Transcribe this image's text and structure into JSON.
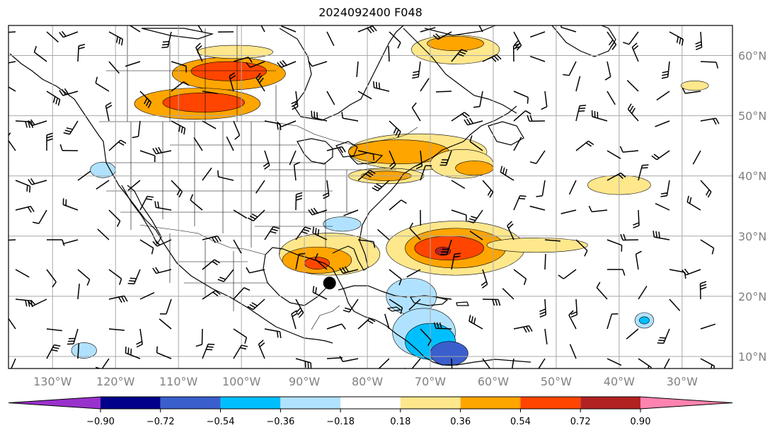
{
  "title": "2024092400 F048",
  "map": {
    "extent": {
      "lon_min": -137,
      "lon_max": -22,
      "lat_min": 8,
      "lat_max": 65
    },
    "grid": true,
    "lon_ticks": [
      {
        "value": -130,
        "label": "130°W"
      },
      {
        "value": -120,
        "label": "120°W"
      },
      {
        "value": -110,
        "label": "110°W"
      },
      {
        "value": -100,
        "label": "100°W"
      },
      {
        "value": -90,
        "label": "90°W"
      },
      {
        "value": -80,
        "label": "80°W"
      },
      {
        "value": -70,
        "label": "70°W"
      },
      {
        "value": -60,
        "label": "60°W"
      },
      {
        "value": -50,
        "label": "50°W"
      },
      {
        "value": -40,
        "label": "40°W"
      },
      {
        "value": -30,
        "label": "30°W"
      }
    ],
    "lat_ticks": [
      {
        "value": 60,
        "label": "60°N"
      },
      {
        "value": 50,
        "label": "50°N"
      },
      {
        "value": 40,
        "label": "40°N"
      },
      {
        "value": 30,
        "label": "30°N"
      },
      {
        "value": 20,
        "label": "20°N"
      },
      {
        "value": 10,
        "label": "10°N"
      }
    ],
    "storm_marker": {
      "lon": -86,
      "lat": 22.2
    }
  },
  "colorbar": {
    "boundaries": [
      "−0.90",
      "−0.72",
      "−0.54",
      "−0.36",
      "−0.18",
      "0.18",
      "0.36",
      "0.54",
      "0.72",
      "0.90"
    ],
    "colors": [
      "#9932cc",
      "#00008b",
      "#3a5fcd",
      "#00bfff",
      "#b0e2ff",
      "#ffffff",
      "#ffe78c",
      "#ffa500",
      "#ff4500",
      "#b22222",
      "#ff83b0"
    ],
    "extend": "both"
  },
  "fields": {
    "positive": [
      {
        "lon": -102,
        "lat": 57,
        "rx": 9,
        "ry": 2.7,
        "level": 2
      },
      {
        "lon": -102,
        "lat": 57.4,
        "rx": 6,
        "ry": 1.6,
        "level": 3
      },
      {
        "lon": -107,
        "lat": 52,
        "rx": 10,
        "ry": 2.6,
        "level": 2
      },
      {
        "lon": -106,
        "lat": 52.2,
        "rx": 6.5,
        "ry": 1.6,
        "level": 3
      },
      {
        "lon": -101,
        "lat": 60.6,
        "rx": 6,
        "ry": 1.1,
        "level": 1
      },
      {
        "lon": -66,
        "lat": 61,
        "rx": 7,
        "ry": 2.4,
        "level": 1
      },
      {
        "lon": -66,
        "lat": 62,
        "rx": 4.5,
        "ry": 1.2,
        "level": 2
      },
      {
        "lon": -72,
        "lat": 44,
        "rx": 11,
        "ry": 3,
        "level": 1
      },
      {
        "lon": -75,
        "lat": 44,
        "rx": 8,
        "ry": 2,
        "level": 2
      },
      {
        "lon": -65,
        "lat": 42,
        "rx": 5,
        "ry": 2.4,
        "level": 1
      },
      {
        "lon": -63,
        "lat": 41.3,
        "rx": 3,
        "ry": 1.2,
        "level": 2
      },
      {
        "lon": -77,
        "lat": 40,
        "rx": 6,
        "ry": 1.3,
        "level": 1
      },
      {
        "lon": -77,
        "lat": 40,
        "rx": 4,
        "ry": 0.8,
        "level": 2
      },
      {
        "lon": -86,
        "lat": 27,
        "rx": 8,
        "ry": 3.5,
        "level": 1
      },
      {
        "lon": -88,
        "lat": 26,
        "rx": 5.5,
        "ry": 2.2,
        "level": 2
      },
      {
        "lon": -88,
        "lat": 25.5,
        "rx": 2,
        "ry": 1,
        "level": 3
      },
      {
        "lon": -66,
        "lat": 28,
        "rx": 11,
        "ry": 4.5,
        "level": 1
      },
      {
        "lon": -66,
        "lat": 28,
        "rx": 8,
        "ry": 3.3,
        "level": 2
      },
      {
        "lon": -67,
        "lat": 28,
        "rx": 5.5,
        "ry": 2,
        "level": 3
      },
      {
        "lon": -68,
        "lat": 27.5,
        "rx": 1.2,
        "ry": 0.7,
        "level": 4
      },
      {
        "lon": -53,
        "lat": 28.5,
        "rx": 8,
        "ry": 1.2,
        "level": 1
      },
      {
        "lon": -40,
        "lat": 38.5,
        "rx": 5,
        "ry": 1.6,
        "level": 1
      },
      {
        "lon": -28,
        "lat": 55,
        "rx": 2.2,
        "ry": 0.8,
        "level": 1
      }
    ],
    "negative": [
      {
        "lon": -73,
        "lat": 20,
        "rx": 4,
        "ry": 3,
        "level": 1
      },
      {
        "lon": -71,
        "lat": 14,
        "rx": 5,
        "ry": 4,
        "level": 1
      },
      {
        "lon": -70,
        "lat": 12.5,
        "rx": 4,
        "ry": 3,
        "level": 2
      },
      {
        "lon": -67,
        "lat": 10.5,
        "rx": 3,
        "ry": 2,
        "level": 3
      },
      {
        "lon": -84,
        "lat": 32,
        "rx": 3,
        "ry": 1.2,
        "level": 1
      },
      {
        "lon": -122,
        "lat": 41,
        "rx": 2,
        "ry": 1.3,
        "level": 1
      },
      {
        "lon": -36,
        "lat": 16,
        "rx": 1.5,
        "ry": 1.3,
        "level": 1
      },
      {
        "lon": -36,
        "lat": 16,
        "rx": 0.8,
        "ry": 0.6,
        "level": 2
      },
      {
        "lon": -125,
        "lat": 11,
        "rx": 2,
        "ry": 1.3,
        "level": 1
      }
    ]
  }
}
